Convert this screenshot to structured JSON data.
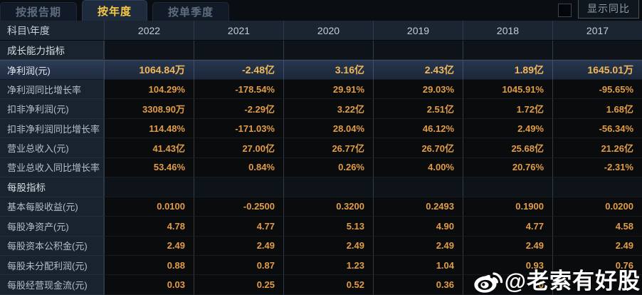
{
  "tabs": [
    {
      "label": "按报告期",
      "active": false
    },
    {
      "label": "按年度",
      "active": true
    },
    {
      "label": "按单季度",
      "active": false
    }
  ],
  "controls": {
    "show_yoy_label": "显示同比",
    "yoy_checkbox_checked": false
  },
  "table": {
    "corner_header": "科目\\年度",
    "years": [
      "2022",
      "2021",
      "2020",
      "2019",
      "2018",
      "2017"
    ],
    "more_years_icon": "»",
    "rows": [
      {
        "type": "section",
        "label": "成长能力指标",
        "values": [
          "",
          "",
          "",
          "",
          "",
          ""
        ]
      },
      {
        "type": "data",
        "highlight": true,
        "label": "净利润(元)",
        "values": [
          "1064.84万",
          "-2.48亿",
          "3.16亿",
          "2.43亿",
          "1.89亿",
          "1645.01万"
        ]
      },
      {
        "type": "data",
        "label": "净利润同比增长率",
        "values": [
          "104.29%",
          "-178.54%",
          "29.91%",
          "29.03%",
          "1045.91%",
          "-95.65%"
        ]
      },
      {
        "type": "data",
        "label": "扣非净利润(元)",
        "values": [
          "3308.90万",
          "-2.29亿",
          "3.22亿",
          "2.51亿",
          "1.72亿",
          "1.68亿"
        ]
      },
      {
        "type": "data",
        "label": "扣非净利润同比增长率",
        "values": [
          "114.48%",
          "-171.03%",
          "28.04%",
          "46.12%",
          "2.49%",
          "-56.34%"
        ]
      },
      {
        "type": "data",
        "label": "营业总收入(元)",
        "values": [
          "41.43亿",
          "27.00亿",
          "26.77亿",
          "26.70亿",
          "25.68亿",
          "21.26亿"
        ]
      },
      {
        "type": "data",
        "label": "营业总收入同比增长率",
        "values": [
          "53.46%",
          "0.84%",
          "0.26%",
          "4.00%",
          "20.76%",
          "-2.31%"
        ]
      },
      {
        "type": "section",
        "label": "每股指标",
        "values": [
          "",
          "",
          "",
          "",
          "",
          ""
        ]
      },
      {
        "type": "data",
        "label": "基本每股收益(元)",
        "values": [
          "0.0100",
          "-0.2500",
          "0.3200",
          "0.2493",
          "0.1900",
          "0.0200"
        ]
      },
      {
        "type": "data",
        "label": "每股净资产(元)",
        "values": [
          "4.78",
          "4.77",
          "5.13",
          "4.90",
          "4.77",
          "4.58"
        ]
      },
      {
        "type": "data",
        "label": "每股资本公积金(元)",
        "values": [
          "2.49",
          "2.49",
          "2.49",
          "2.49",
          "2.49",
          "2.49"
        ]
      },
      {
        "type": "data",
        "label": "每股未分配利润(元)",
        "values": [
          "0.88",
          "0.87",
          "1.23",
          "1.04",
          "0.93",
          "0.76"
        ]
      },
      {
        "type": "data",
        "label": "每股经营现金流(元)",
        "values": [
          "0.03",
          "0.25",
          "0.52",
          "0.36",
          "0",
          ""
        ]
      }
    ]
  },
  "watermark": {
    "text": "@老索有好股",
    "icon": "weibo-icon"
  },
  "colors": {
    "accent_gold": "#f7c947",
    "value_gold": "#e19d46",
    "highlight_row_bg": "#27364e",
    "header_bg": "#1a2531",
    "label_col_bg": "#19232e",
    "value_cell_bg": "#0a0b0d",
    "page_bg": "#0a0d12"
  }
}
